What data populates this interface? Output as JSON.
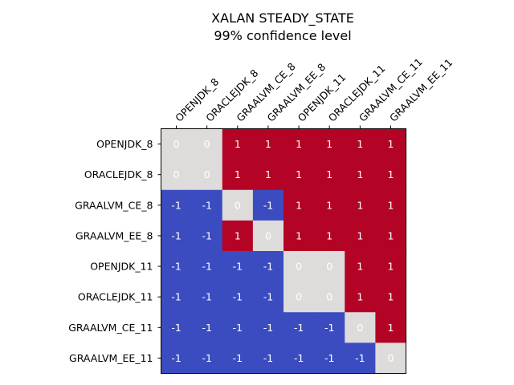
{
  "chart_data": {
    "type": "heatmap",
    "title": "XALAN STEADY_STATE",
    "subtitle": "99% confidence level",
    "x_labels": [
      "OPENJDK_8",
      "ORACLEJDK_8",
      "GRAALVM_CE_8",
      "GRAALVM_EE_8",
      "OPENJDK_11",
      "ORACLEJDK_11",
      "GRAALVM_CE_11",
      "GRAALVM_EE_11"
    ],
    "y_labels": [
      "OPENJDK_8",
      "ORACLEJDK_8",
      "GRAALVM_CE_8",
      "GRAALVM_EE_8",
      "OPENJDK_11",
      "ORACLEJDK_11",
      "GRAALVM_CE_11",
      "GRAALVM_EE_11"
    ],
    "x_tick_position": "top",
    "x_tick_rotation": 45,
    "values": [
      [
        0,
        0,
        1,
        1,
        1,
        1,
        1,
        1
      ],
      [
        0,
        0,
        1,
        1,
        1,
        1,
        1,
        1
      ],
      [
        -1,
        -1,
        0,
        -1,
        1,
        1,
        1,
        1
      ],
      [
        -1,
        -1,
        1,
        0,
        1,
        1,
        1,
        1
      ],
      [
        -1,
        -1,
        -1,
        -1,
        0,
        0,
        1,
        1
      ],
      [
        -1,
        -1,
        -1,
        -1,
        0,
        0,
        1,
        1
      ],
      [
        -1,
        -1,
        -1,
        -1,
        -1,
        -1,
        0,
        1
      ],
      [
        -1,
        -1,
        -1,
        -1,
        -1,
        -1,
        -1,
        0
      ]
    ],
    "colormap": "coolwarm",
    "value_colors": {
      "-1": "#3b4cc0",
      "0": "#dddcdb",
      "1": "#b40426"
    },
    "annotation_color": "#ffffff"
  }
}
